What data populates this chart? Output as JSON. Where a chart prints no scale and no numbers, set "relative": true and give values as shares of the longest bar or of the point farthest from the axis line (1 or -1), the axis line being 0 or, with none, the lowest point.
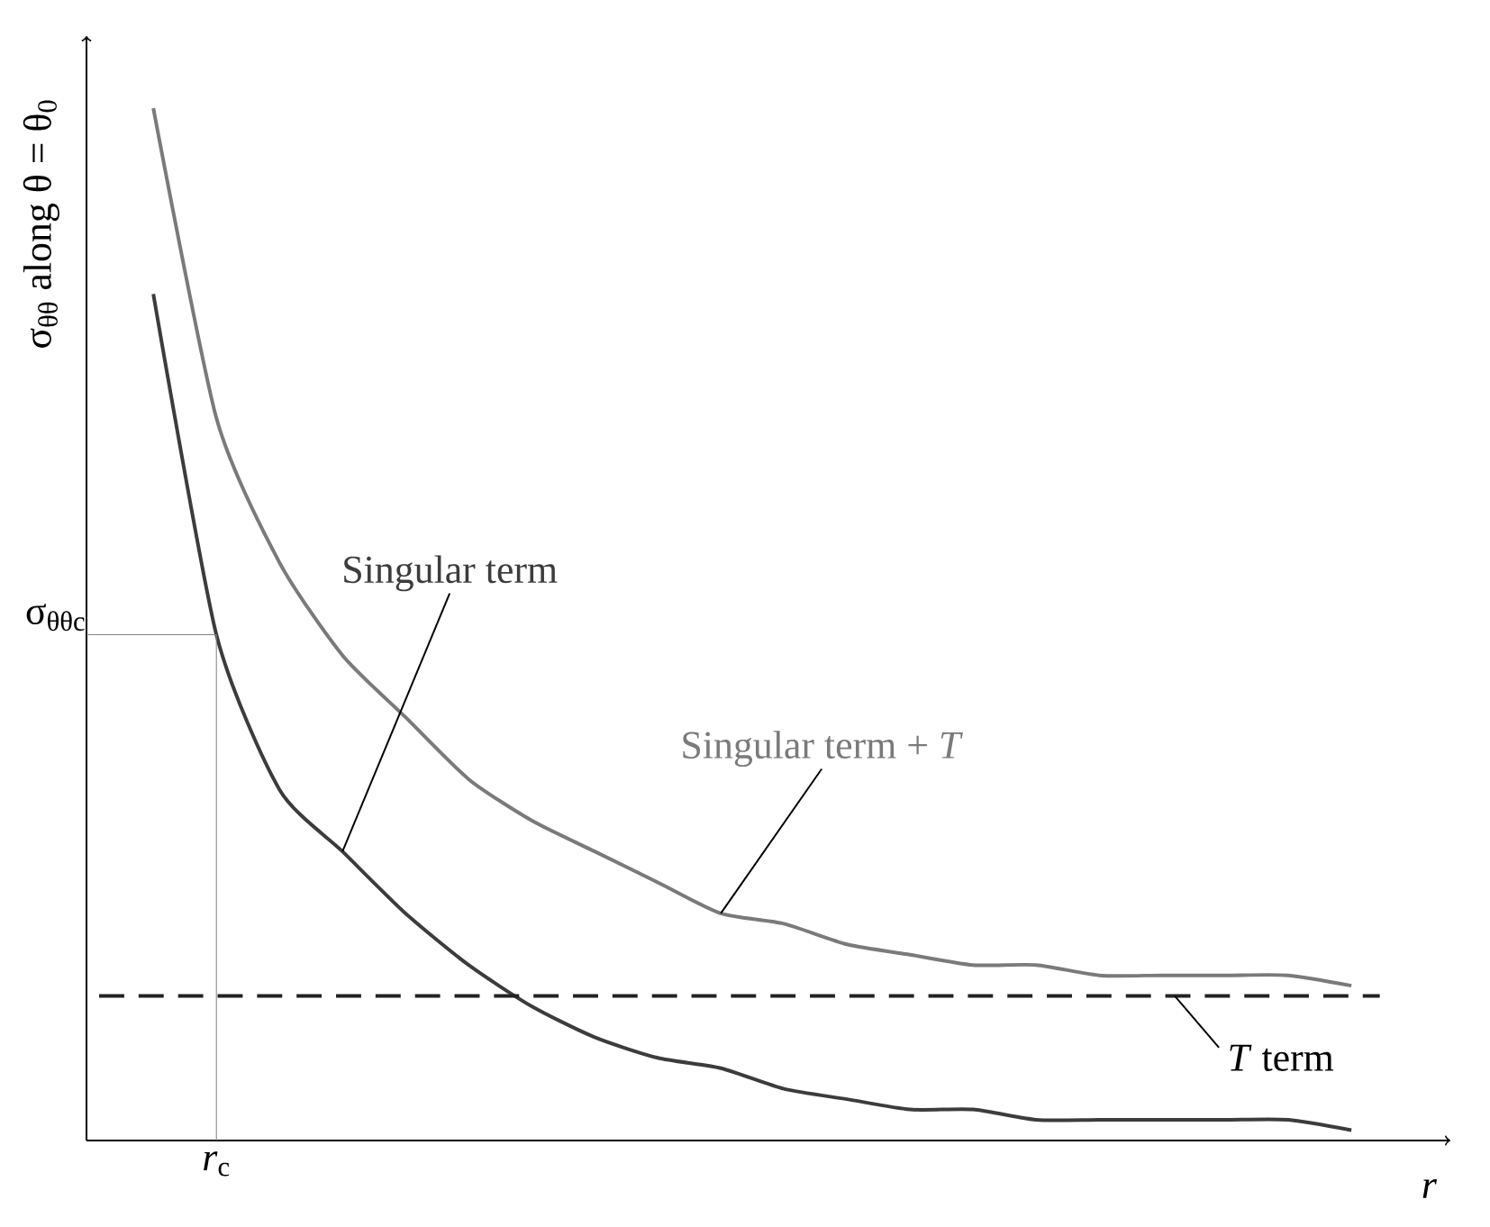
{
  "chart_data": {
    "type": "line",
    "relative": true,
    "xlabel": "*r*",
    "ylabel": "σ$_{θθ}$ along θ = θ$_{0}$",
    "categories": [
      null,
      null,
      null,
      null,
      null,
      null,
      null,
      null,
      null,
      null,
      null,
      null,
      null,
      null,
      null,
      null,
      null,
      null,
      null,
      null
    ],
    "series": [
      {
        "name": "Singular term + *T*",
        "color": "#7a7a7a",
        "values": [
          1,
          0.7,
          0.56,
          0.47,
          0.41,
          0.35,
          0.31,
          0.28,
          0.25,
          0.22,
          0.21,
          0.19,
          0.18,
          0.17,
          0.17,
          0.16,
          0.16,
          0.16,
          0.16,
          0.15
        ]
      },
      {
        "name": "Singular term",
        "color": "#3c3c3c",
        "values": [
          0.82,
          0.49,
          0.34,
          0.28,
          0.22,
          0.17,
          0.13,
          0.1,
          0.08,
          0.07,
          0.05,
          0.04,
          0.03,
          0.03,
          0.02,
          0.02,
          0.02,
          0.02,
          0.02,
          0.01
        ]
      }
    ],
    "ref_lines": [
      {
        "axis": "y",
        "value": 0.14,
        "label": "*T* term",
        "line_style": "dashed",
        "color": "#222222"
      }
    ],
    "annotations": [
      "σ$_{θθc}$",
      "*r*$_{c}$"
    ],
    "line_style": "solid",
    "marker": "none",
    "grid": false,
    "legend": false
  }
}
